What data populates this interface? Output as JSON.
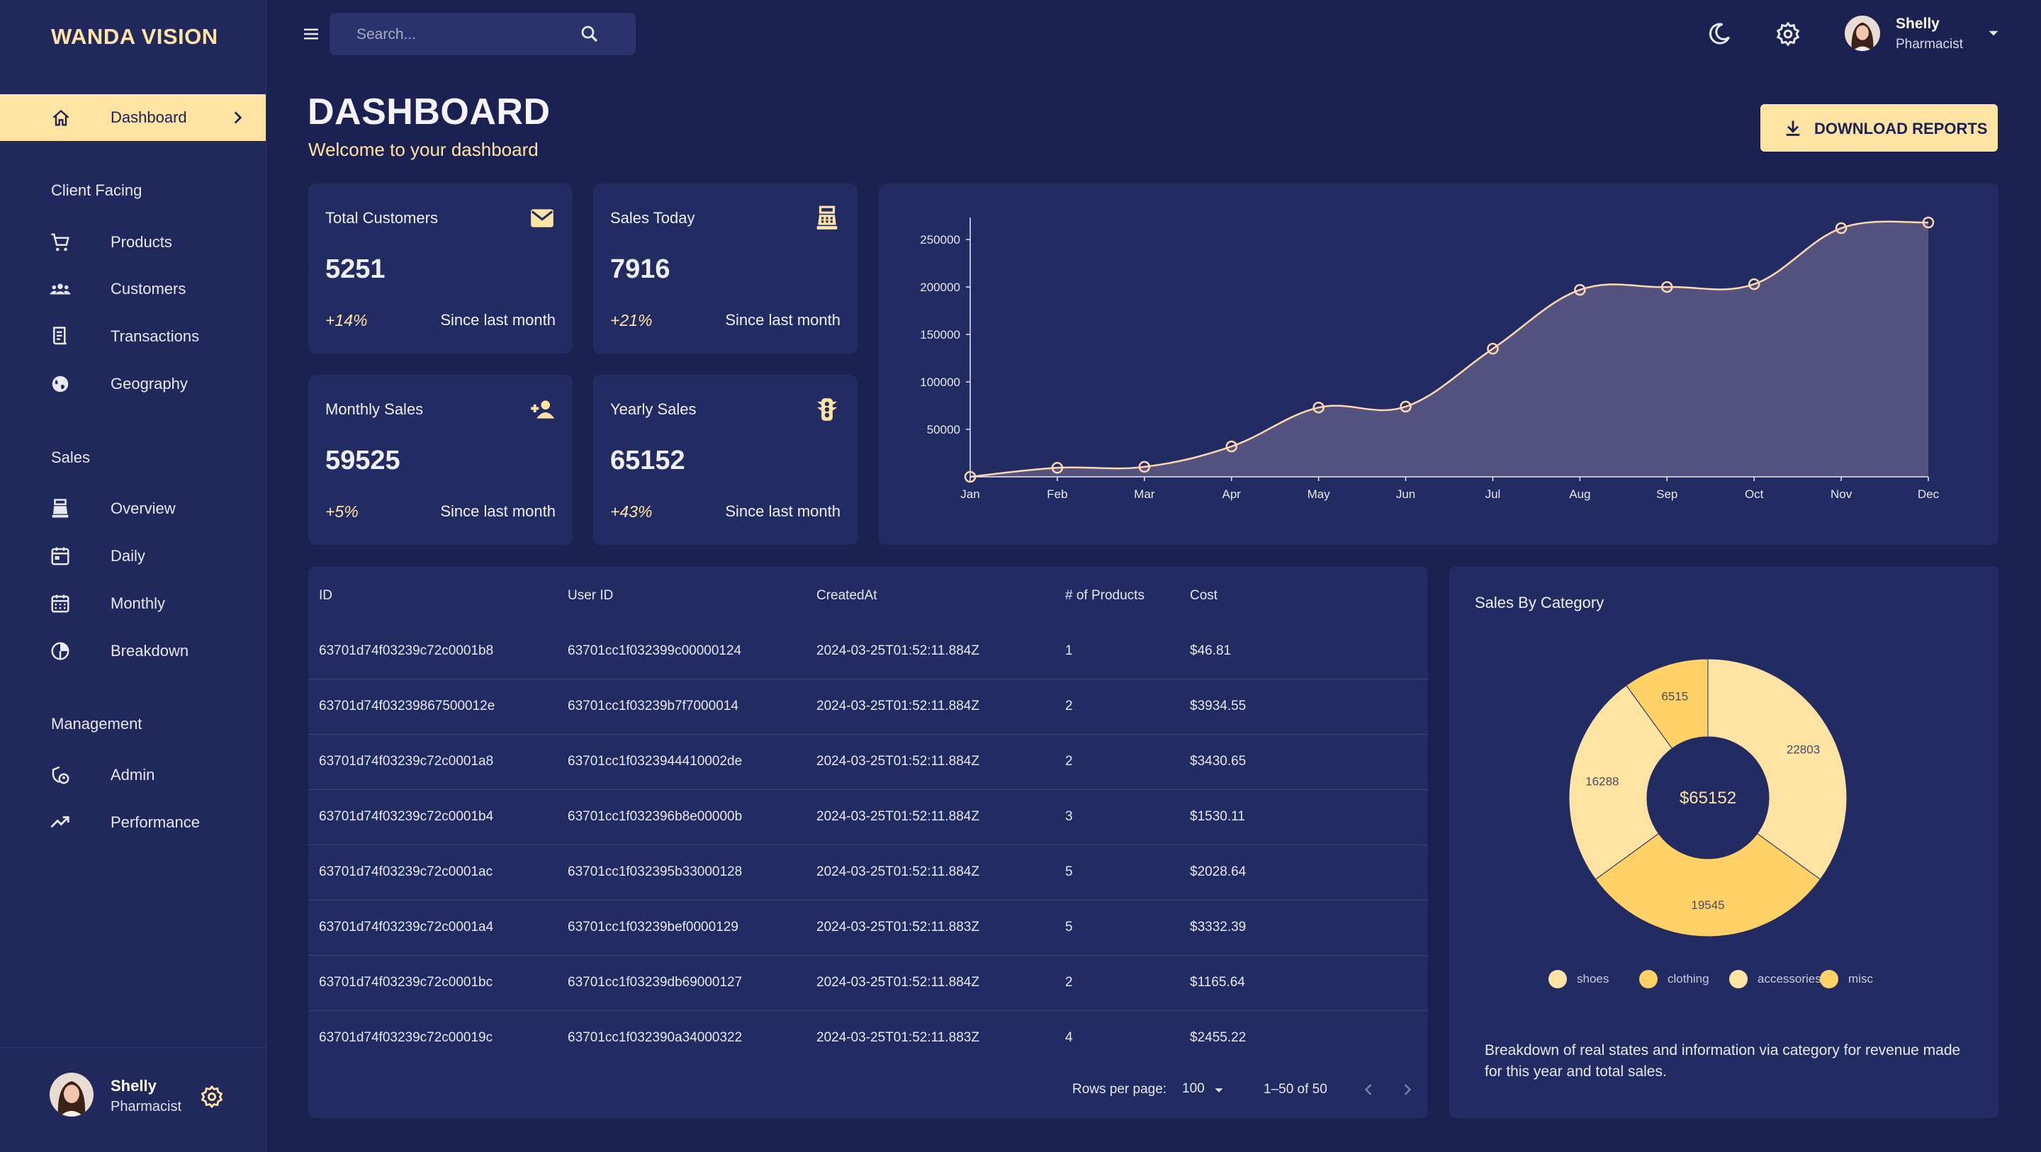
{
  "brand": "WANDA VISION",
  "sidebar": {
    "active": {
      "label": "Dashboard",
      "icon": "home-icon"
    },
    "sections": [
      {
        "title": "Client Facing",
        "items": [
          {
            "label": "Products",
            "icon": "cart-icon"
          },
          {
            "label": "Customers",
            "icon": "groups-icon"
          },
          {
            "label": "Transactions",
            "icon": "receipt-icon"
          },
          {
            "label": "Geography",
            "icon": "globe-icon"
          }
        ]
      },
      {
        "title": "Sales",
        "items": [
          {
            "label": "Overview",
            "icon": "point-of-sale-icon"
          },
          {
            "label": "Daily",
            "icon": "calendar-today-icon"
          },
          {
            "label": "Monthly",
            "icon": "calendar-month-icon"
          },
          {
            "label": "Breakdown",
            "icon": "pie-chart-icon"
          }
        ]
      },
      {
        "title": "Management",
        "items": [
          {
            "label": "Admin",
            "icon": "admin-icon"
          },
          {
            "label": "Performance",
            "icon": "trending-up-icon"
          }
        ]
      }
    ],
    "user": {
      "name": "Shelly",
      "role": "Pharmacist"
    }
  },
  "topbar": {
    "search_placeholder": "Search...",
    "user": {
      "name": "Shelly",
      "role": "Pharmacist"
    }
  },
  "header": {
    "title": "DASHBOARD",
    "subtitle": "Welcome to your dashboard",
    "download_label": "DOWNLOAD REPORTS"
  },
  "stats": [
    {
      "title": "Total Customers",
      "value": "5251",
      "change": "+14%",
      "since": "Since last month",
      "icon": "email-icon"
    },
    {
      "title": "Sales Today",
      "value": "7916",
      "change": "+21%",
      "since": "Since last month",
      "icon": "point-of-sale-icon"
    },
    {
      "title": "Monthly Sales",
      "value": "59525",
      "change": "+5%",
      "since": "Since last month",
      "icon": "person-add-icon"
    },
    {
      "title": "Yearly Sales",
      "value": "65152",
      "change": "+43%",
      "since": "Since last month",
      "icon": "traffic-icon"
    }
  ],
  "chart_data": [
    {
      "type": "area",
      "title": "",
      "xlabel": "",
      "ylabel": "",
      "x": [
        "Jan",
        "Feb",
        "Mar",
        "Apr",
        "May",
        "Jun",
        "Jul",
        "Aug",
        "Sep",
        "Oct",
        "Nov",
        "Dec"
      ],
      "series": [
        {
          "values": [
            0,
            9500,
            10500,
            32000,
            73000,
            74000,
            135000,
            197000,
            200000,
            203000,
            262000,
            268000
          ]
        }
      ],
      "ylim": [
        0,
        268000
      ],
      "yticks": [
        50000,
        100000,
        150000,
        200000,
        250000
      ],
      "grid": false,
      "colors": {
        "line": "#ffd8b0",
        "fill": "#5d5a86"
      }
    },
    {
      "type": "pie",
      "title": "Sales By Category",
      "center_label": "$65152",
      "series": [
        {
          "name": "shoes",
          "value": 22803,
          "color": "#ffe3a3"
        },
        {
          "name": "clothing",
          "value": 19545,
          "color": "#ffd166"
        },
        {
          "name": "accessories",
          "value": 16288,
          "color": "#ffe3a3"
        },
        {
          "name": "misc",
          "value": 6515,
          "color": "#ffd166"
        }
      ]
    }
  ],
  "table": {
    "columns": [
      "ID",
      "User ID",
      "CreatedAt",
      "# of Products",
      "Cost"
    ],
    "rows": [
      [
        "63701d74f03239c72c0001b8",
        "63701cc1f032399c00000124",
        "2024-03-25T01:52:11.884Z",
        "1",
        "$46.81"
      ],
      [
        "63701d74f03239867500012e",
        "63701cc1f03239b7f7000014",
        "2024-03-25T01:52:11.884Z",
        "2",
        "$3934.55"
      ],
      [
        "63701d74f03239c72c0001a8",
        "63701cc1f0323944410002de",
        "2024-03-25T01:52:11.884Z",
        "2",
        "$3430.65"
      ],
      [
        "63701d74f03239c72c0001b4",
        "63701cc1f032396b8e00000b",
        "2024-03-25T01:52:11.884Z",
        "3",
        "$1530.11"
      ],
      [
        "63701d74f03239c72c0001ac",
        "63701cc1f032395b33000128",
        "2024-03-25T01:52:11.884Z",
        "5",
        "$2028.64"
      ],
      [
        "63701d74f03239c72c0001a4",
        "63701cc1f03239bef0000129",
        "2024-03-25T01:52:11.883Z",
        "5",
        "$3332.39"
      ],
      [
        "63701d74f03239c72c0001bc",
        "63701cc1f03239db69000127",
        "2024-03-25T01:52:11.884Z",
        "2",
        "$1165.64"
      ],
      [
        "63701d74f03239c72c00019c",
        "63701cc1f032390a34000322",
        "2024-03-25T01:52:11.883Z",
        "4",
        "$2455.22"
      ]
    ],
    "footer": {
      "rows_per_page_label": "Rows per page:",
      "rows_per_page_value": "100",
      "range": "1–50 of 50"
    }
  },
  "pie_card": {
    "description": "Breakdown of real states and information via category for revenue made for this year and total sales."
  },
  "colors": {
    "accent": "#ffe3a3",
    "background": "#1b2150",
    "panel": "#222b62",
    "pie_dark": "#ffd166"
  }
}
